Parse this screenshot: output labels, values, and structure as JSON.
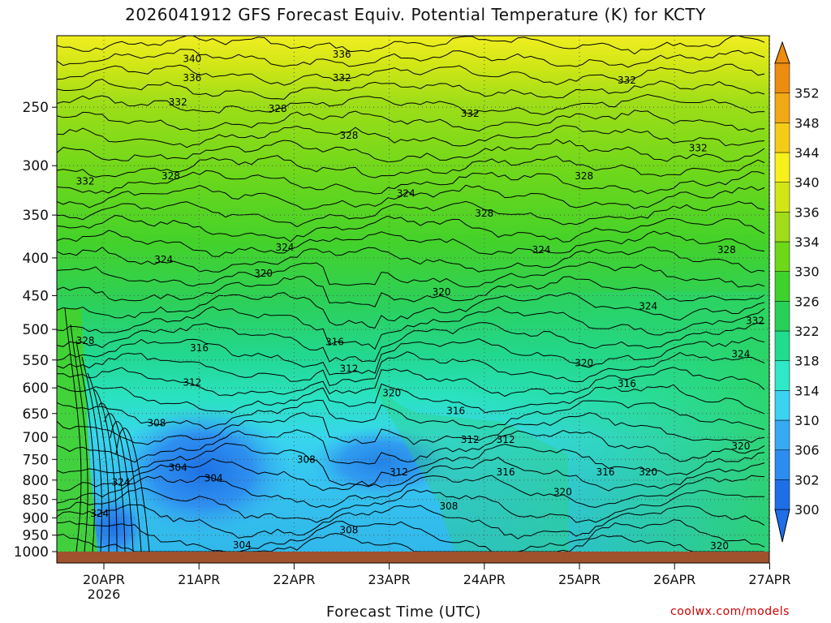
{
  "chart_data": {
    "type": "heatmap",
    "title": "2026041912 GFS Forecast Equiv. Potential Temperature (K) for KCTY",
    "xlabel": "Forecast Time (UTC)",
    "ylabel": "",
    "x_ticks": [
      "20APR",
      "21APR",
      "22APR",
      "23APR",
      "24APR",
      "25APR",
      "26APR",
      "27APR"
    ],
    "x_subtick_label": "2026",
    "y_ticks": [
      250,
      300,
      350,
      400,
      450,
      500,
      550,
      600,
      650,
      700,
      750,
      800,
      850,
      900,
      950,
      1000
    ],
    "y_axis": "pressure (hPa), log scale, top ~200, bottom 1000",
    "colorbar_levels": [
      300,
      302,
      306,
      310,
      314,
      318,
      322,
      326,
      330,
      334,
      336,
      340,
      344,
      348,
      352
    ],
    "colorbar_colors": [
      "#1e6ee8",
      "#2d8cf0",
      "#36aaf2",
      "#3cd2f2",
      "#2ee8c8",
      "#20dc8e",
      "#28d058",
      "#3ed22c",
      "#6cd818",
      "#a0dc18",
      "#d2e616",
      "#f8f01a",
      "#f4cc18",
      "#f0a814",
      "#ec8c10"
    ],
    "contour_labels": [
      {
        "text": "340",
        "t": 0.19,
        "p": 215
      },
      {
        "text": "336",
        "t": 0.19,
        "p": 228
      },
      {
        "text": "336",
        "t": 0.4,
        "p": 212
      },
      {
        "text": "332",
        "t": 0.4,
        "p": 228
      },
      {
        "text": "332",
        "t": 0.17,
        "p": 246
      },
      {
        "text": "328",
        "t": 0.31,
        "p": 251
      },
      {
        "text": "332",
        "t": 0.58,
        "p": 255
      },
      {
        "text": "332",
        "t": 0.8,
        "p": 230
      },
      {
        "text": "328",
        "t": 0.41,
        "p": 273
      },
      {
        "text": "332",
        "t": 0.9,
        "p": 284
      },
      {
        "text": "332",
        "t": 0.04,
        "p": 315
      },
      {
        "text": "328",
        "t": 0.16,
        "p": 310
      },
      {
        "text": "328",
        "t": 0.74,
        "p": 310
      },
      {
        "text": "324",
        "t": 0.49,
        "p": 327
      },
      {
        "text": "328",
        "t": 0.6,
        "p": 348
      },
      {
        "text": "324",
        "t": 0.32,
        "p": 387
      },
      {
        "text": "324",
        "t": 0.15,
        "p": 402
      },
      {
        "text": "324",
        "t": 0.68,
        "p": 390
      },
      {
        "text": "328",
        "t": 0.94,
        "p": 390
      },
      {
        "text": "320",
        "t": 0.29,
        "p": 420
      },
      {
        "text": "320",
        "t": 0.54,
        "p": 445
      },
      {
        "text": "324",
        "t": 0.83,
        "p": 465
      },
      {
        "text": "332",
        "t": 0.98,
        "p": 487
      },
      {
        "text": "328",
        "t": 0.04,
        "p": 518
      },
      {
        "text": "316",
        "t": 0.2,
        "p": 530
      },
      {
        "text": "316",
        "t": 0.39,
        "p": 520
      },
      {
        "text": "324",
        "t": 0.96,
        "p": 540
      },
      {
        "text": "312",
        "t": 0.41,
        "p": 565
      },
      {
        "text": "320",
        "t": 0.74,
        "p": 555
      },
      {
        "text": "312",
        "t": 0.19,
        "p": 590
      },
      {
        "text": "320",
        "t": 0.47,
        "p": 610
      },
      {
        "text": "316",
        "t": 0.8,
        "p": 592
      },
      {
        "text": "316",
        "t": 0.56,
        "p": 645
      },
      {
        "text": "308",
        "t": 0.14,
        "p": 670
      },
      {
        "text": "312",
        "t": 0.58,
        "p": 705
      },
      {
        "text": "312",
        "t": 0.63,
        "p": 705
      },
      {
        "text": "320",
        "t": 0.96,
        "p": 720
      },
      {
        "text": "308",
        "t": 0.35,
        "p": 750
      },
      {
        "text": "304",
        "t": 0.17,
        "p": 770
      },
      {
        "text": "304",
        "t": 0.22,
        "p": 795
      },
      {
        "text": "312",
        "t": 0.48,
        "p": 780
      },
      {
        "text": "316",
        "t": 0.63,
        "p": 780
      },
      {
        "text": "316",
        "t": 0.77,
        "p": 780
      },
      {
        "text": "320",
        "t": 0.83,
        "p": 780
      },
      {
        "text": "324",
        "t": 0.09,
        "p": 805
      },
      {
        "text": "320",
        "t": 0.71,
        "p": 830
      },
      {
        "text": "308",
        "t": 0.55,
        "p": 868
      },
      {
        "text": "324",
        "t": 0.06,
        "p": 888
      },
      {
        "text": "308",
        "t": 0.41,
        "p": 935
      },
      {
        "text": "304",
        "t": 0.26,
        "p": 980
      },
      {
        "text": "320",
        "t": 0.93,
        "p": 982
      }
    ],
    "ground_color": "#a0522d"
  },
  "credit": "coolwx.com/models"
}
